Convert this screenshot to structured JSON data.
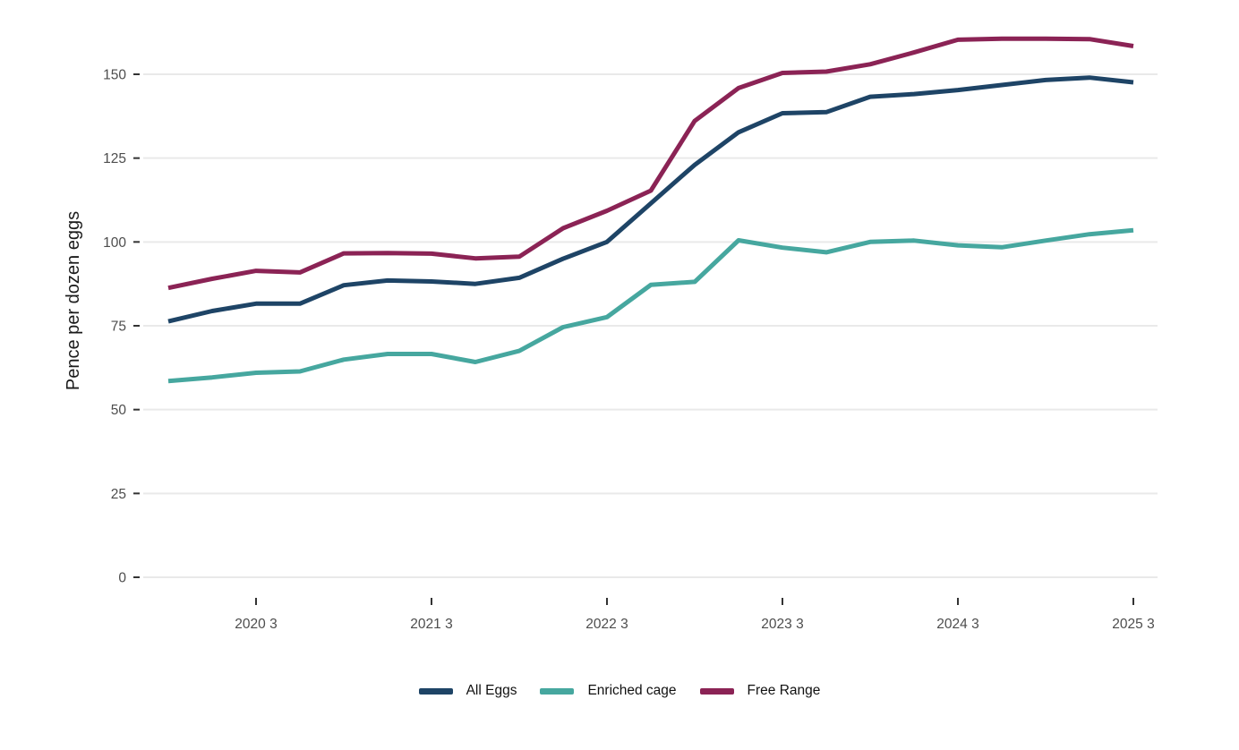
{
  "chart_data": {
    "type": "line",
    "title": "",
    "xlabel": "",
    "ylabel": "Pence per dozen eggs",
    "grid": "horizontal-only",
    "legend_position": "bottom-center",
    "background": "#ffffff",
    "gridline_color": "#e9e9e9",
    "tick_mark_color": "#333333",
    "tick_label_color": "#4d4d4d",
    "axis_title_color": "#1a1a1a",
    "ylim": [
      0,
      172
    ],
    "y_ticks": [
      0,
      25,
      50,
      75,
      100,
      125,
      150
    ],
    "x": [
      "2020 1",
      "2020 2",
      "2020 3",
      "2020 4",
      "2021 1",
      "2021 2",
      "2021 3",
      "2021 4",
      "2022 1",
      "2022 2",
      "2022 3",
      "2022 4",
      "2023 1",
      "2023 2",
      "2023 3",
      "2023 4",
      "2024 1",
      "2024 2",
      "2024 3",
      "2024 4",
      "2025 1",
      "2025 2",
      "2025 3"
    ],
    "x_tick_indices": [
      2,
      6,
      10,
      14,
      18,
      22
    ],
    "x_tick_labels": [
      "2020 3",
      "2021 3",
      "2022 3",
      "2023 3",
      "2024 3",
      "2025 3"
    ],
    "series": [
      {
        "name": "All Eggs",
        "color": "#1e4466",
        "values": [
          76.3,
          79.4,
          81.6,
          81.6,
          87.1,
          88.5,
          88.2,
          87.5,
          89.3,
          95.0,
          100.0,
          111.5,
          123.0,
          132.7,
          138.4,
          138.7,
          143.3,
          144.1,
          145.3,
          146.8,
          148.3,
          149.0,
          147.6
        ]
      },
      {
        "name": "Enriched cage",
        "color": "#46a79f",
        "values": [
          58.5,
          59.6,
          61.0,
          61.4,
          64.9,
          66.6,
          66.6,
          64.2,
          67.5,
          74.6,
          77.6,
          87.2,
          88.1,
          100.5,
          98.3,
          96.9,
          100.0,
          100.4,
          99.0,
          98.4,
          100.4,
          102.3,
          103.5
        ]
      },
      {
        "name": "Free Range",
        "color": "#8b2355",
        "values": [
          86.3,
          89.0,
          91.4,
          90.9,
          96.6,
          96.7,
          96.5,
          95.1,
          95.6,
          104.1,
          109.3,
          115.3,
          136.1,
          145.9,
          150.4,
          150.8,
          153.0,
          156.5,
          160.3,
          160.6,
          160.6,
          160.5,
          158.4
        ]
      }
    ]
  }
}
